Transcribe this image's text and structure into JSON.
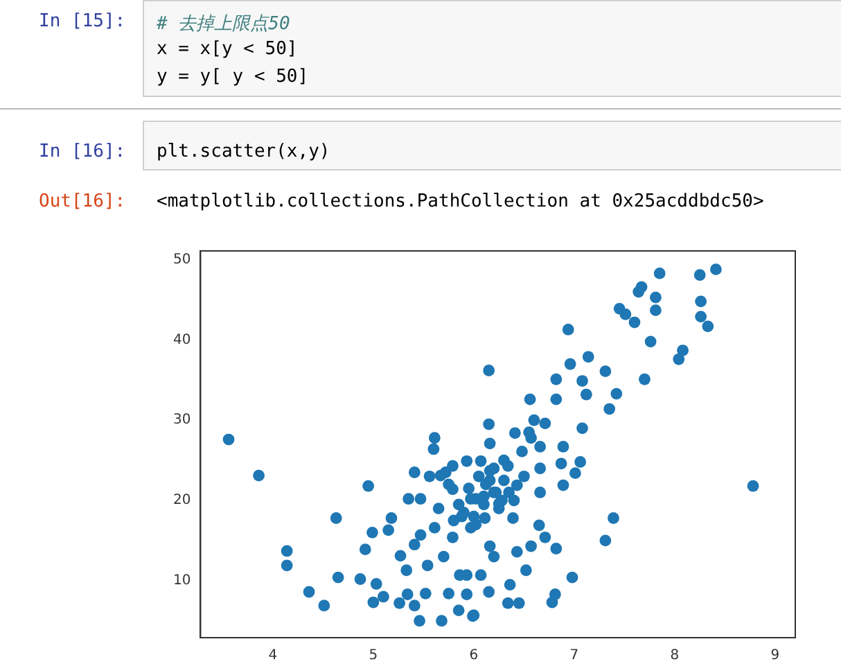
{
  "chart_data": {
    "type": "scatter",
    "annotations": [
      "In [15]:",
      "# 去掉上限点50",
      "x = x[y < 50]",
      "y = y[ y < 50]",
      "In [16]:",
      "plt.scatter(x,y)",
      "Out[16]:",
      "<matplotlib.collections.PathCollection at 0x25acddbdc50>"
    ],
    "series": [
      {
        "color": "#1f77b4",
        "x": [
          3.56,
          3.86,
          4.14,
          4.14,
          4.36,
          4.51,
          4.63,
          4.65,
          4.95,
          4.87,
          4.99,
          4.92,
          5.03,
          5.0,
          5.1,
          5.18,
          5.15,
          5.27,
          5.33,
          5.26,
          5.34,
          5.41,
          5.46,
          5.41,
          5.35,
          5.47,
          5.41,
          5.47,
          5.54,
          5.52,
          5.61,
          5.6,
          5.56,
          5.68,
          5.67,
          5.75,
          5.86,
          5.85,
          5.93,
          5.99,
          6.15,
          6.15,
          6.16,
          6.15,
          8.41,
          8.25,
          7.85,
          7.67,
          7.64,
          7.81,
          7.81,
          7.45,
          7.51,
          7.6,
          8.26,
          8.26,
          8.33,
          7.76,
          8.08,
          8.04,
          7.7,
          6.94,
          7.14,
          6.96,
          7.31,
          7.08,
          6.82,
          7.42,
          7.35,
          7.12,
          6.56,
          6.82,
          6.71,
          7.08,
          6.41,
          6.57,
          6.89,
          7.06,
          7.01,
          6.87,
          6.66,
          6.89,
          6.66,
          8.78,
          7.39,
          7.31,
          6.98,
          6.81,
          6.78,
          6.57,
          6.82,
          6.71,
          6.65,
          6.52,
          6.36,
          6.45,
          6.34,
          6.0,
          6.25,
          6.39,
          6.43,
          6.2,
          6.07,
          6.34,
          6.16,
          6.43,
          6.02,
          6.48,
          6.66,
          5.79,
          5.93,
          5.65,
          5.79,
          5.97,
          5.79,
          5.61,
          5.7,
          6.16,
          6.11,
          6.16,
          6.07,
          5.93,
          5.97,
          5.75,
          5.85,
          5.95,
          6.05,
          6.1,
          6.2,
          6.3,
          6.25,
          6.35,
          5.8,
          5.9,
          6.0,
          6.1,
          6.2,
          6.3,
          6.4,
          6.5,
          6.55,
          6.6,
          5.88,
          6.02,
          6.12,
          6.22,
          5.72,
          6.28
        ],
        "values": [
          27.6,
          23.1,
          13.7,
          11.9,
          8.6,
          6.9,
          17.8,
          10.4,
          21.8,
          10.2,
          16.0,
          13.9,
          9.6,
          7.3,
          8.0,
          17.8,
          16.3,
          13.1,
          11.3,
          7.2,
          8.3,
          6.9,
          5.0,
          23.5,
          20.2,
          20.2,
          14.5,
          15.7,
          11.9,
          8.4,
          27.8,
          26.4,
          23.0,
          5.0,
          23.1,
          8.4,
          10.7,
          6.3,
          8.3,
          5.6,
          36.2,
          29.5,
          27.1,
          8.6,
          48.8,
          48.1,
          48.3,
          46.6,
          46.0,
          45.3,
          43.7,
          43.9,
          43.2,
          42.2,
          44.8,
          42.9,
          41.7,
          39.8,
          38.7,
          37.6,
          35.1,
          41.3,
          37.9,
          37.0,
          36.1,
          34.9,
          35.1,
          33.3,
          31.4,
          33.2,
          32.6,
          32.6,
          29.6,
          29.0,
          28.4,
          27.8,
          26.7,
          24.8,
          23.4,
          24.6,
          24.0,
          21.9,
          21.0,
          21.8,
          17.8,
          15.0,
          10.4,
          8.3,
          7.3,
          14.3,
          14.0,
          15.4,
          16.9,
          11.3,
          9.5,
          7.2,
          7.2,
          5.7,
          19.6,
          17.8,
          13.6,
          13.0,
          24.9,
          24.3,
          22.5,
          21.9,
          20.2,
          26.1,
          26.7,
          24.3,
          24.9,
          19.0,
          21.4,
          16.6,
          15.4,
          16.6,
          13.0,
          23.7,
          17.8,
          14.3,
          10.7,
          10.7,
          20.2,
          22.0,
          19.5,
          21.5,
          23.0,
          20.5,
          21.0,
          22.5,
          19.0,
          21.0,
          17.5,
          18.5,
          18.0,
          19.5,
          24.0,
          25.0,
          20.0,
          23.0,
          28.5,
          30.0,
          18.0,
          17.0,
          22.0,
          21.0,
          23.5,
          20.0
        ]
      }
    ],
    "xlim": [
      3.28,
      9.2
    ],
    "ylim": [
      2.9,
      51.1
    ],
    "xticks": [
      4,
      5,
      6,
      7,
      8,
      9
    ],
    "yticks": [
      10,
      20,
      30,
      40,
      50
    ],
    "marker": "circle",
    "grid": false,
    "legend": false
  }
}
